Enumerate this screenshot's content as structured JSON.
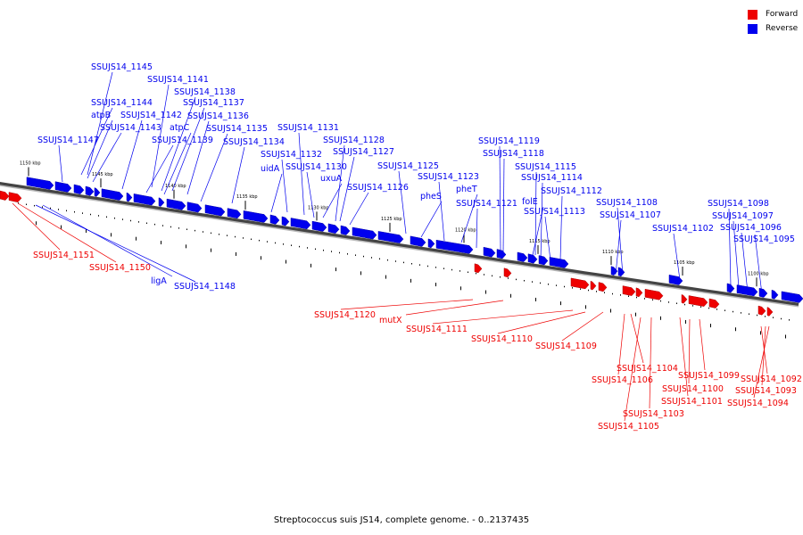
{
  "colors": {
    "forward": "#ee0000",
    "reverse": "#0000ee",
    "backbone": "#666666"
  },
  "legend": {
    "forward_label": "Forward",
    "reverse_label": "Reverse"
  },
  "footer": {
    "caption": "Streptococcus suis JS14, complete genome. - 0..2137435"
  },
  "ticks": [
    "1150 kbp",
    "1145 kbp",
    "1140 kbp",
    "1135 kbp",
    "1130 kbp",
    "1125 kbp",
    "1120 kbp",
    "1115 kbp",
    "1110 kbp",
    "1105 kbp",
    "1100 kbp"
  ],
  "reverse_labels": [
    "SSUJS14_1145",
    "SSUJS14_1141",
    "SSUJS14_1138",
    "SSUJS14_1144",
    "SSUJS14_1137",
    "atpB",
    "SSUJS14_1142",
    "SSUJS14_1136",
    "SSUJS14_1143",
    "atpC",
    "SSUJS14_1135",
    "SSUJS14_1131",
    "SSUJS14_1147",
    "SSUJS14_1139",
    "SSUJS14_1134",
    "SSUJS14_1128",
    "SSUJS14_1132",
    "SSUJS14_1127",
    "uidA",
    "SSUJS14_1130",
    "uxuA",
    "SSUJS14_1125",
    "SSUJS14_1126",
    "SSUJS14_1123",
    "pheT",
    "pheS",
    "SSUJS14_1121",
    "SSUJS14_1119",
    "SSUJS14_1118",
    "SSUJS14_1115",
    "SSUJS14_1114",
    "folE",
    "SSUJS14_1112",
    "SSUJS14_1113",
    "SSUJS14_1108",
    "SSUJS14_1107",
    "SSUJS14_1102",
    "SSUJS14_1098",
    "SSUJS14_1097",
    "SSUJS14_1096",
    "SSUJS14_1095",
    "ligA",
    "SSUJS14_1148"
  ],
  "forward_labels": [
    "SSUJS14_1151",
    "SSUJS14_1150",
    "SSUJS14_1120",
    "mutX",
    "SSUJS14_1111",
    "SSUJS14_1110",
    "SSUJS14_1109",
    "SSUJS14_1104",
    "SSUJS14_1106",
    "SSUJS14_1099",
    "SSUJS14_1100",
    "SSUJS14_1101",
    "SSUJS14_1103",
    "SSUJS14_1105",
    "SSUJS14_1092",
    "SSUJS14_1093",
    "SSUJS14_1094"
  ]
}
